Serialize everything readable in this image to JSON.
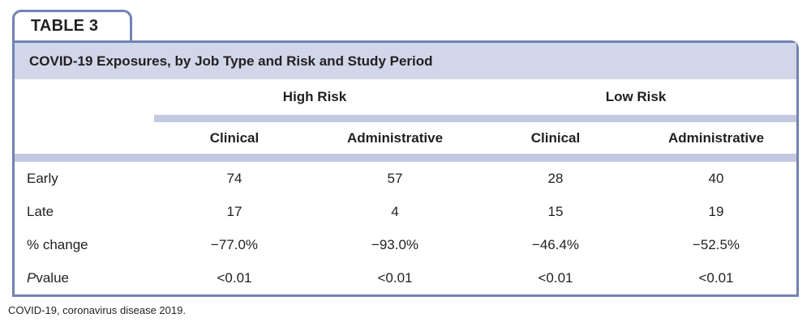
{
  "table_tag": "TABLE 3",
  "title": "COVID-19 Exposures, by Job Type and Risk and Study Period",
  "column_groups": [
    {
      "label": "High Risk"
    },
    {
      "label": "Low Risk"
    }
  ],
  "sub_columns": [
    "Clinical",
    "Administrative",
    "Clinical",
    "Administrative"
  ],
  "rows": [
    {
      "label": "Early",
      "values": [
        "74",
        "57",
        "28",
        "40"
      ]
    },
    {
      "label": "Late",
      "values": [
        "17",
        "4",
        "15",
        "19"
      ]
    },
    {
      "label": "% change",
      "values": [
        "−77.0%",
        "−93.0%",
        "−46.4%",
        "−52.5%"
      ]
    },
    {
      "label_prefix": "P",
      "label_rest": " value",
      "values": [
        "<0.01",
        "<0.01",
        "<0.01",
        "<0.01"
      ]
    }
  ],
  "footnote": "COVID-19, coronavirus disease 2019.",
  "colors": {
    "border": "#7282b4",
    "title_bg": "#d2d6e9",
    "band": "#c3c9e0",
    "text": "#231f20",
    "background": "#ffffff"
  }
}
